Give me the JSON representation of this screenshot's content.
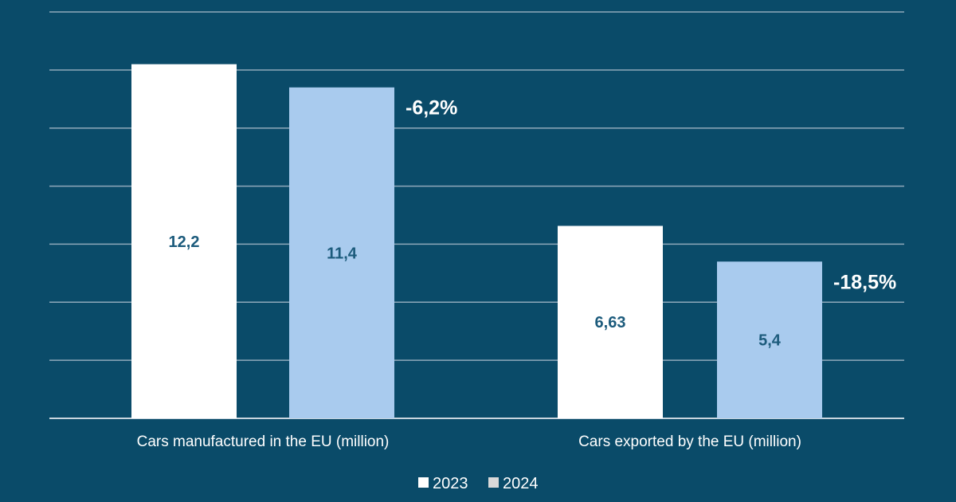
{
  "chart_data": {
    "type": "bar",
    "categories": [
      "Cars manufactured in the EU (million)",
      "Cars exported by the EU (million)"
    ],
    "series": [
      {
        "name": "2023",
        "values": [
          12.2,
          6.63
        ],
        "labels": [
          "12,2",
          "6,63"
        ],
        "color": "#ffffff"
      },
      {
        "name": "2024",
        "values": [
          11.4,
          5.4
        ],
        "labels": [
          "11,4",
          "5,4"
        ],
        "color": "#a9cbee"
      }
    ],
    "annotations": [
      "-6,2%",
      "-18,5%"
    ],
    "ylim": [
      0,
      14
    ],
    "ytick_step": 2,
    "grid": true,
    "legend": "bottom",
    "legend_swatch_colors": [
      "#ffffff",
      "#d9d9d9"
    ],
    "value_label_color": "#1c5b7c",
    "title": "",
    "xlabel": "",
    "ylabel": ""
  }
}
